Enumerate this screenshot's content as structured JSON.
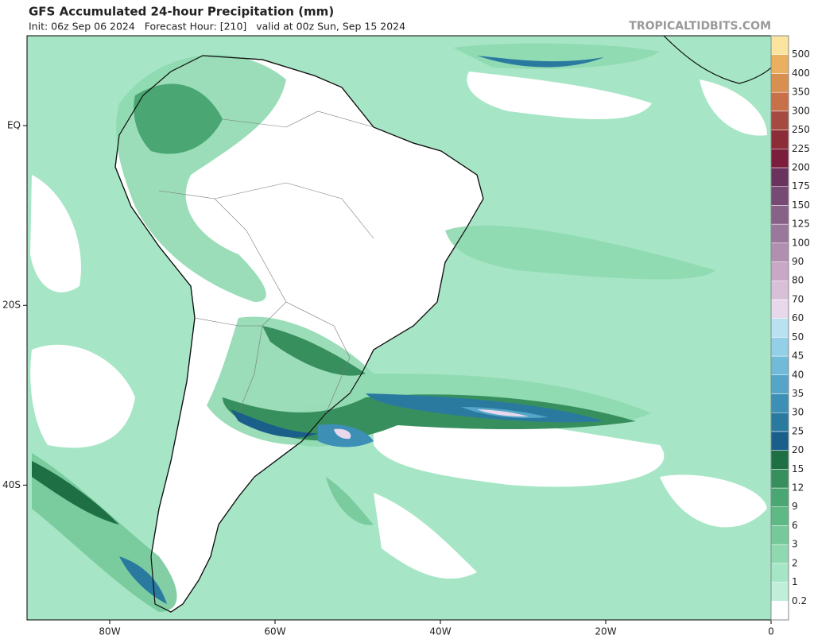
{
  "header": {
    "title": "GFS Accumulated 24-hour Precipitation (mm)",
    "subtitle": "Init: 06z Sep 06 2024   Forecast Hour: [210]   valid at 00z Sun, Sep 15 2024",
    "watermark": "TROPICALTIDBITS.COM"
  },
  "map": {
    "xlim": [
      -90,
      0
    ],
    "ylim": [
      -55,
      10
    ],
    "xticks": [
      {
        "value": -80,
        "label": "80W"
      },
      {
        "value": -60,
        "label": "60W"
      },
      {
        "value": -40,
        "label": "40W"
      },
      {
        "value": -20,
        "label": "20W"
      },
      0
    ],
    "yticks": [
      {
        "value": 0,
        "label": "EQ"
      },
      {
        "value": -20,
        "label": "20S"
      },
      {
        "value": -40,
        "label": "40S"
      }
    ]
  },
  "colorbar": {
    "levels": [
      0.2,
      1,
      2,
      3,
      6,
      9,
      12,
      15,
      20,
      25,
      30,
      35,
      40,
      45,
      50,
      60,
      70,
      80,
      90,
      100,
      125,
      150,
      175,
      200,
      225,
      250,
      300,
      350,
      400,
      500
    ],
    "colors": [
      "#ffffff",
      "#bfeed9",
      "#a6e6c6",
      "#8fd9b0",
      "#76c99a",
      "#5fb985",
      "#4aa672",
      "#378f5e",
      "#1f6f45",
      "#1a5e8a",
      "#2a7aa0",
      "#3d8fb5",
      "#55a5c8",
      "#72bbd8",
      "#93cfe6",
      "#b8e2f2",
      "#e8d8ec",
      "#d8c0d8",
      "#c8a8c4",
      "#b08fb0",
      "#9a789c",
      "#876186",
      "#764a72",
      "#6a335d",
      "#7a1e3c",
      "#8c2c38",
      "#a44a40",
      "#c8704a",
      "#d89050",
      "#eab060",
      "#fbe3a0"
    ]
  }
}
